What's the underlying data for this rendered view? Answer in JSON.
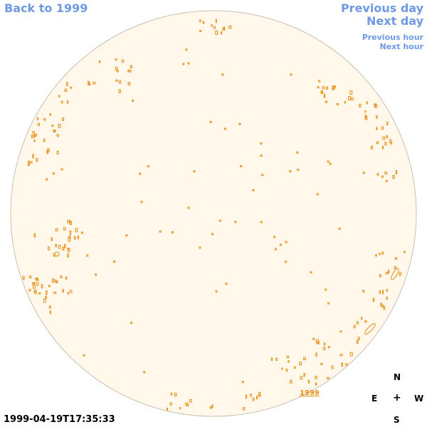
{
  "nav": {
    "back_label": "Back to 1999",
    "previous_day_label": "Previous day",
    "next_day_label": "Next day",
    "previous_hour_label": "Previous hour",
    "next_hour_label": "Next hour"
  },
  "compass": {
    "north": "N",
    "east": "E",
    "center": "+",
    "west": "W",
    "south": "S"
  },
  "timestamp": "1999-04-19T17:35:33",
  "year_marker": "1999",
  "colors": {
    "link": "#6f9ae3",
    "disk_fill": "#fff8eb",
    "disk_edge": "#c8c0b0",
    "feature": "#ea8e14"
  }
}
